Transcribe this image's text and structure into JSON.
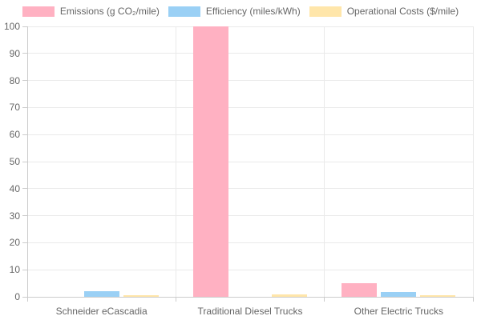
{
  "colors": {
    "background": "#FFFFFF",
    "text": "#666666",
    "grid": "#EAEAEA",
    "axis": "#CCCCCC",
    "emissions_fill": "#FFB1C2",
    "efficiency_fill": "#9AD0F5",
    "costs_fill": "#FFE6AA"
  },
  "chart_data": {
    "type": "bar",
    "title": "",
    "xlabel": "",
    "ylabel": "",
    "categories": [
      "Schneider eCascadia",
      "Traditional Diesel Trucks",
      "Other Electric Trucks"
    ],
    "series": [
      {
        "id": "emissions",
        "name": "Emissions (g CO₂/mile)",
        "values": [
          0,
          100,
          5
        ],
        "fill": "#FFB1C2"
      },
      {
        "id": "efficiency",
        "name": "Efficiency (miles/kWh)",
        "values": [
          2.2,
          0,
          1.7
        ],
        "fill": "#9AD0F5"
      },
      {
        "id": "operational-costs",
        "name": "Operational Costs ($/mile)",
        "values": [
          0.7,
          0.9,
          0.5
        ],
        "fill": "#FFE6AA"
      }
    ],
    "ylim": [
      0,
      100
    ],
    "yticks": [
      0,
      10,
      20,
      30,
      40,
      50,
      60,
      70,
      80,
      90,
      100
    ],
    "grid": true,
    "legend_position": "top"
  }
}
